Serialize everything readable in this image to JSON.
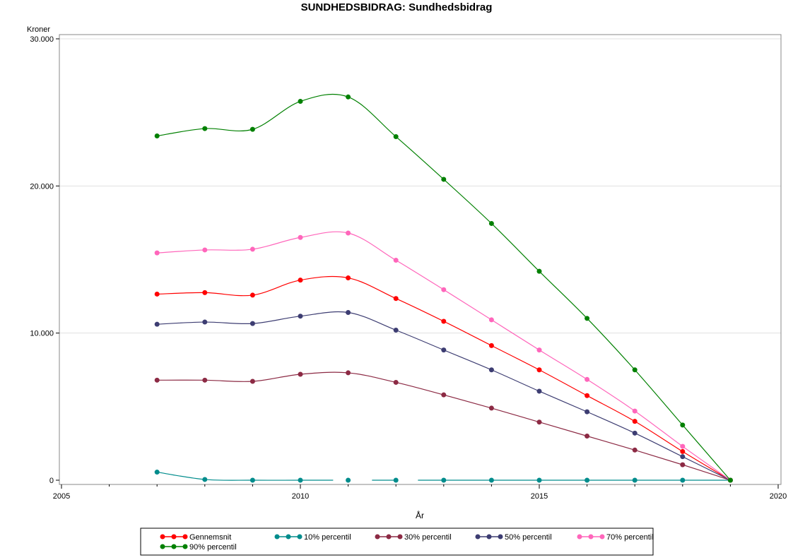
{
  "chart_data": {
    "type": "line",
    "title": "SUNDHEDSBIDRAG:  Sundhedsbidrag",
    "ylabel": "Kroner",
    "xlabel": "År",
    "xlim": [
      2005,
      2020
    ],
    "ylim": [
      0,
      30000
    ],
    "x_ticks": [
      2005,
      2010,
      2015,
      2020
    ],
    "x_tick_labels": [
      "2005",
      "2010",
      "2015",
      "2020"
    ],
    "y_ticks": [
      0,
      10000,
      20000,
      30000
    ],
    "y_tick_labels": [
      "0",
      "10.000",
      "20.000",
      "30.000"
    ],
    "grid": true,
    "legend_position": "bottom",
    "x": [
      2007,
      2008,
      2009,
      2010,
      2011,
      2012,
      2013,
      2014,
      2015,
      2016,
      2017,
      2018,
      2019
    ],
    "series": [
      {
        "name": "Gennemsnit",
        "color": "#ff0000",
        "values": [
          12650,
          12750,
          12580,
          13600,
          13750,
          12350,
          10800,
          9150,
          7500,
          5750,
          4000,
          1950,
          0
        ]
      },
      {
        "name": "10% percentil",
        "color": "#008c8c",
        "values": [
          550,
          50,
          0,
          0,
          0,
          0,
          0,
          0,
          0,
          0,
          0,
          0,
          0
        ]
      },
      {
        "name": "30% percentil",
        "color": "#8c2a44",
        "values": [
          6800,
          6800,
          6720,
          7200,
          7300,
          6650,
          5800,
          4900,
          3950,
          3000,
          2050,
          1050,
          0
        ]
      },
      {
        "name": "50% percentil",
        "color": "#3d3d72",
        "values": [
          10600,
          10750,
          10650,
          11150,
          11400,
          10200,
          8850,
          7500,
          6050,
          4650,
          3200,
          1600,
          0
        ]
      },
      {
        "name": "70% percentil",
        "color": "#ff66bb",
        "values": [
          15450,
          15650,
          15700,
          16500,
          16800,
          14950,
          12950,
          10900,
          8850,
          6850,
          4700,
          2300,
          0
        ]
      },
      {
        "name": "90% percentil",
        "color": "#008000",
        "values": [
          23400,
          23900,
          23850,
          25750,
          26050,
          23350,
          20450,
          17450,
          14200,
          11000,
          7500,
          3750,
          0
        ]
      }
    ]
  }
}
